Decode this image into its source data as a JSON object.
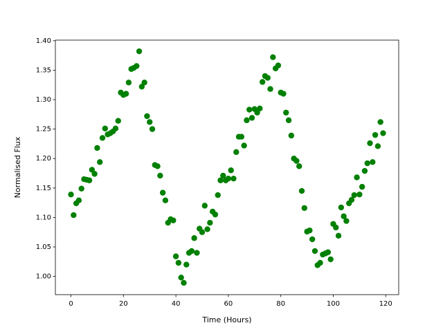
{
  "chart_data": {
    "type": "scatter",
    "xlabel": "Time (Hours)",
    "ylabel": "Normalised Flux",
    "color": "#008000",
    "x": [
      0,
      1,
      2,
      3,
      4,
      5,
      6,
      7,
      8,
      9,
      10,
      11,
      12,
      13,
      14,
      15,
      16,
      17,
      18,
      19,
      20,
      21,
      22,
      23,
      24,
      25,
      26,
      27,
      28,
      29,
      30,
      31,
      32,
      33,
      34,
      35,
      36,
      37,
      38,
      39,
      40,
      41,
      42,
      43,
      44,
      45,
      46,
      47,
      48,
      49,
      50,
      51,
      52,
      53,
      54,
      55,
      56,
      57,
      58,
      59,
      60,
      61,
      62,
      63,
      64,
      65,
      66,
      67,
      68,
      69,
      70,
      71,
      72,
      73,
      74,
      75,
      76,
      77,
      78,
      79,
      80,
      81,
      82,
      83,
      84,
      85,
      86,
      87,
      88,
      89,
      90,
      91,
      92,
      93,
      94,
      95,
      96,
      97,
      98,
      99,
      100,
      101,
      102,
      103,
      104,
      105,
      106,
      107,
      108,
      109,
      110,
      111,
      112,
      113,
      114,
      115,
      116,
      117,
      118,
      119
    ],
    "values": [
      1.139,
      1.104,
      1.124,
      1.129,
      1.149,
      1.165,
      1.164,
      1.163,
      1.181,
      1.174,
      1.218,
      1.194,
      1.235,
      1.251,
      1.241,
      1.243,
      1.246,
      1.251,
      1.264,
      1.312,
      1.308,
      1.31,
      1.329,
      1.352,
      1.354,
      1.357,
      1.382,
      1.322,
      1.329,
      1.272,
      1.262,
      1.25,
      1.189,
      1.187,
      1.171,
      1.142,
      1.129,
      1.091,
      1.097,
      1.095,
      1.034,
      1.023,
      0.998,
      0.989,
      1.02,
      1.04,
      1.043,
      1.065,
      1.04,
      1.081,
      1.075,
      1.12,
      1.08,
      1.091,
      1.11,
      1.105,
      1.138,
      1.163,
      1.171,
      1.163,
      1.166,
      1.18,
      1.166,
      1.211,
      1.237,
      1.237,
      1.222,
      1.265,
      1.283,
      1.269,
      1.284,
      1.278,
      1.285,
      1.33,
      1.34,
      1.337,
      1.318,
      1.372,
      1.353,
      1.358,
      1.312,
      1.31,
      1.278,
      1.265,
      1.239,
      1.2,
      1.196,
      1.187,
      1.145,
      1.116,
      1.076,
      1.078,
      1.063,
      1.043,
      1.019,
      1.023,
      1.037,
      1.039,
      1.041,
      1.029,
      1.089,
      1.083,
      1.069,
      1.117,
      1.102,
      1.094,
      1.124,
      1.13,
      1.138,
      1.168,
      1.139,
      1.152,
      1.179,
      1.192,
      1.226,
      1.194,
      1.24,
      1.221,
      1.262,
      1.243
    ],
    "xlim": [
      -5.95,
      124.95
    ],
    "ylim": [
      0.969,
      1.401
    ],
    "xticks": [
      0,
      20,
      40,
      60,
      80,
      100,
      120
    ],
    "yticks": [
      {
        "value": 1.0,
        "label": "1.00"
      },
      {
        "value": 1.05,
        "label": "1.05"
      },
      {
        "value": 1.1,
        "label": "1.10"
      },
      {
        "value": 1.15,
        "label": "1.15"
      },
      {
        "value": 1.2,
        "label": "1.20"
      },
      {
        "value": 1.25,
        "label": "1.25"
      },
      {
        "value": 1.3,
        "label": "1.30"
      },
      {
        "value": 1.35,
        "label": "1.35"
      },
      {
        "value": 1.4,
        "label": "1.40"
      }
    ]
  }
}
